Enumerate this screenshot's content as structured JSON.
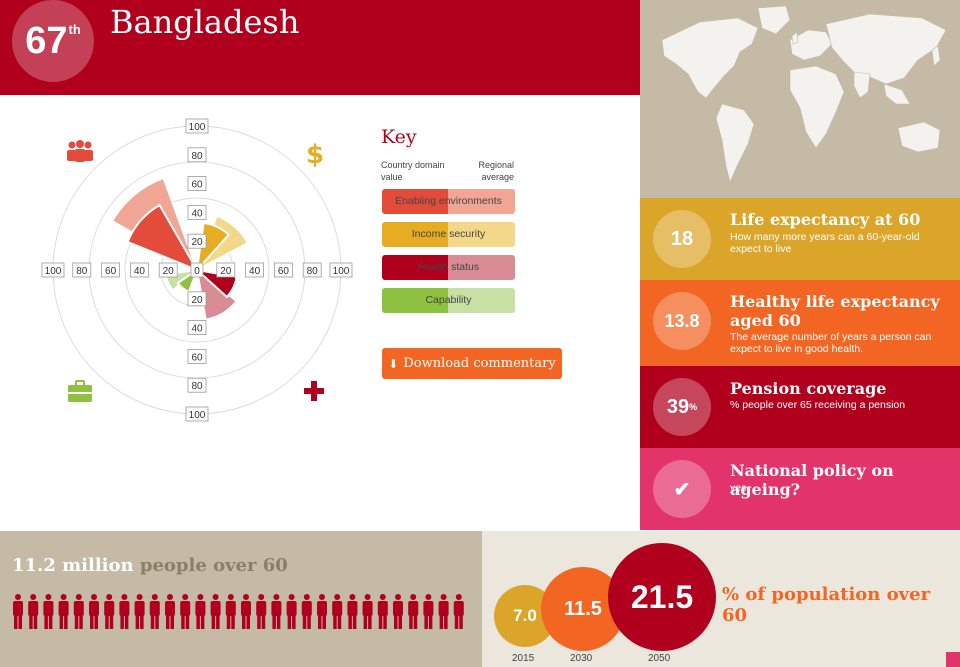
{
  "header": {
    "rank": "67",
    "rank_suffix": "th",
    "country": "Bangladesh"
  },
  "chart": {
    "axis_ticks": [
      "100",
      "80",
      "60",
      "40",
      "20",
      "0"
    ],
    "icons": [
      "people-icon",
      "dollar-icon",
      "briefcase-icon",
      "cross-icon"
    ],
    "colors": {
      "enabling": "#e34b3a",
      "enabling_light": "#f0a595",
      "income": "#e7ad22",
      "income_light": "#f3d889",
      "health": "#b0001e",
      "health_light": "#d98c93",
      "capability": "#8dc13f",
      "capability_light": "#c8e0a3"
    }
  },
  "key": {
    "title": "Key",
    "col_country": "Country domain value",
    "col_regional": "Regional average",
    "items": [
      {
        "label": "Enabling environments"
      },
      {
        "label": "Income security"
      },
      {
        "label": "Health status"
      },
      {
        "label": "Capability"
      }
    ]
  },
  "download": {
    "label": "Download commentary"
  },
  "stats": [
    {
      "value": "18",
      "title": "Life expectancy at 60",
      "desc": "How many more years can a 60-year-old expect to live"
    },
    {
      "value": "13.8",
      "title": "Healthy life expectancy aged 60",
      "desc": "The average number of years a person can expect to live in good health."
    },
    {
      "value": "39",
      "value_suffix": "%",
      "title": "Pension coverage",
      "desc": "% people over 65 receiving a pension"
    },
    {
      "value": "✔",
      "title": "National policy on ageing?",
      "desc": "yes"
    }
  ],
  "people": {
    "headline_num": "11.2 million",
    "headline_rest": "people over 60",
    "figure_count": 30
  },
  "population": {
    "label": "% of population over 60",
    "items": [
      {
        "value": "7.0",
        "year": "2015"
      },
      {
        "value": "11.5",
        "year": "2030"
      },
      {
        "value": "21.5",
        "year": "2050"
      }
    ]
  }
}
